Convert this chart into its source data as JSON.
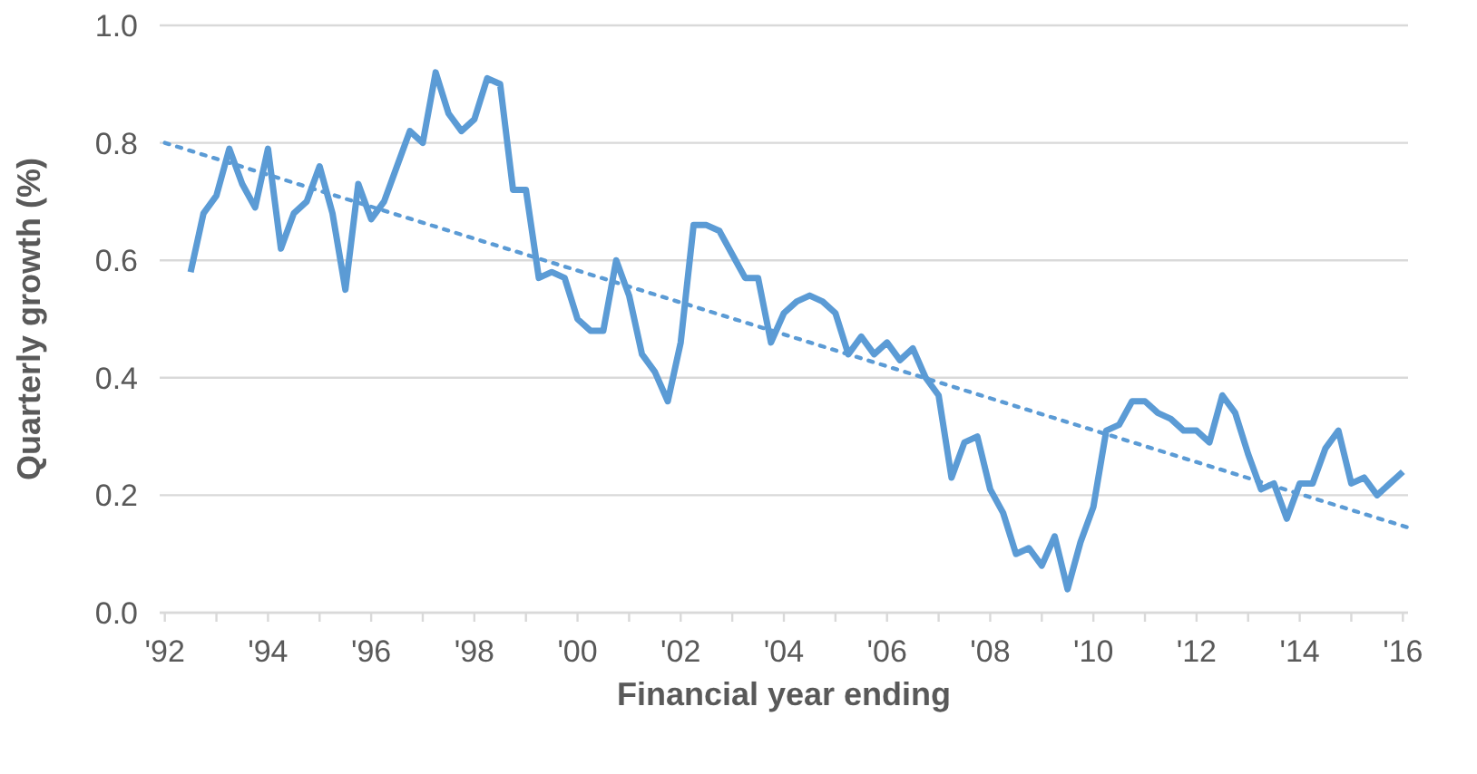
{
  "chart_data": {
    "type": "line",
    "xlabel": "Financial year ending",
    "ylabel": "Quarterly growth (%)",
    "xlim": [
      1991.9,
      2016.1
    ],
    "xticks": [
      {
        "value": 1992,
        "label": "'92"
      },
      {
        "value": 1994,
        "label": "'94"
      },
      {
        "value": 1996,
        "label": "'96"
      },
      {
        "value": 1998,
        "label": "'98"
      },
      {
        "value": 2000,
        "label": "'00"
      },
      {
        "value": 2002,
        "label": "'02"
      },
      {
        "value": 2004,
        "label": "'04"
      },
      {
        "value": 2006,
        "label": "'06"
      },
      {
        "value": 2008,
        "label": "'08"
      },
      {
        "value": 2010,
        "label": "'10"
      },
      {
        "value": 2012,
        "label": "'12"
      },
      {
        "value": 2014,
        "label": "'14"
      },
      {
        "value": 2016,
        "label": "'16"
      }
    ],
    "ylim": [
      0,
      1
    ],
    "yticks": [
      {
        "value": 0,
        "label": "0.0"
      },
      {
        "value": 0.2,
        "label": "0.2"
      },
      {
        "value": 0.4,
        "label": "0.4"
      },
      {
        "value": 0.6,
        "label": "0.6"
      },
      {
        "value": 0.8,
        "label": "0.8"
      },
      {
        "value": 1,
        "label": "1.0"
      }
    ],
    "grid": "y",
    "marker": "none",
    "series": [
      {
        "color": "#5b9bd5",
        "line_style": "solid",
        "x": [
          1992.5,
          1992.75,
          1993,
          1993.25,
          1993.5,
          1993.75,
          1994,
          1994.25,
          1994.5,
          1994.75,
          1995,
          1995.25,
          1995.5,
          1995.75,
          1996,
          1996.25,
          1996.5,
          1996.75,
          1997,
          1997.25,
          1997.5,
          1997.75,
          1998,
          1998.25,
          1998.5,
          1998.75,
          1999,
          1999.25,
          1999.5,
          1999.75,
          2000,
          2000.25,
          2000.5,
          2000.75,
          2001,
          2001.25,
          2001.5,
          2001.75,
          2002,
          2002.25,
          2002.5,
          2002.75,
          2003,
          2003.25,
          2003.5,
          2003.75,
          2004,
          2004.25,
          2004.5,
          2004.75,
          2005,
          2005.25,
          2005.5,
          2005.75,
          2006,
          2006.25,
          2006.5,
          2006.75,
          2007,
          2007.25,
          2007.5,
          2007.75,
          2008,
          2008.25,
          2008.5,
          2008.75,
          2009,
          2009.25,
          2009.5,
          2009.75,
          2010,
          2010.25,
          2010.5,
          2010.75,
          2011,
          2011.25,
          2011.5,
          2011.75,
          2012,
          2012.25,
          2012.5,
          2012.75,
          2013,
          2013.25,
          2013.5,
          2013.75,
          2014,
          2014.25,
          2014.5,
          2014.75,
          2015,
          2015.25,
          2015.5,
          2015.75,
          2016
        ],
        "values": [
          0.58,
          0.68,
          0.71,
          0.79,
          0.73,
          0.69,
          0.79,
          0.62,
          0.68,
          0.7,
          0.76,
          0.68,
          0.55,
          0.73,
          0.67,
          0.7,
          0.76,
          0.82,
          0.8,
          0.92,
          0.85,
          0.82,
          0.84,
          0.91,
          0.9,
          0.72,
          0.72,
          0.57,
          0.58,
          0.57,
          0.5,
          0.48,
          0.48,
          0.6,
          0.54,
          0.44,
          0.41,
          0.36,
          0.46,
          0.66,
          0.66,
          0.65,
          0.61,
          0.57,
          0.57,
          0.46,
          0.51,
          0.53,
          0.54,
          0.53,
          0.51,
          0.44,
          0.47,
          0.44,
          0.46,
          0.43,
          0.45,
          0.4,
          0.37,
          0.23,
          0.29,
          0.3,
          0.21,
          0.17,
          0.1,
          0.11,
          0.08,
          0.13,
          0.04,
          0.12,
          0.18,
          0.31,
          0.32,
          0.36,
          0.36,
          0.34,
          0.33,
          0.31,
          0.31,
          0.29,
          0.37,
          0.34,
          0.27,
          0.21,
          0.22,
          0.16,
          0.22,
          0.22,
          0.28,
          0.31,
          0.22,
          0.23,
          0.2,
          0.22,
          0.24
        ]
      },
      {
        "color": "#5b9bd5",
        "line_style": "dotted",
        "x": [
          1992,
          2016.1
        ],
        "values": [
          0.8,
          0.145
        ]
      }
    ]
  }
}
